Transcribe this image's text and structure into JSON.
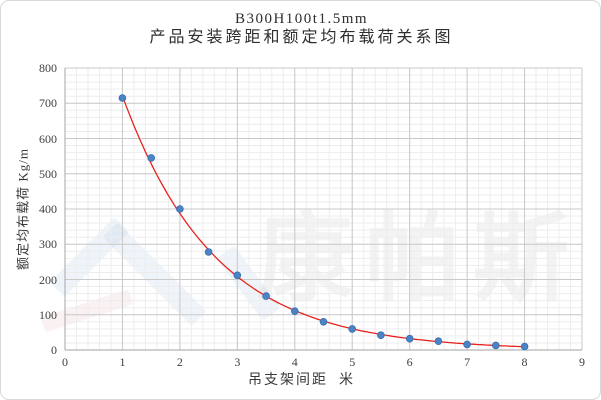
{
  "chart_data": {
    "type": "scatter",
    "title": "B300H100t1.5mm",
    "subtitle": "产品安装跨距和额定均布载荷关系图",
    "xlabel": "吊支架间距  米",
    "ylabel": "额定均布载荷 Kg/m",
    "x": [
      1,
      1.5,
      2,
      2.5,
      3,
      3.5,
      4,
      4.5,
      5,
      5.5,
      6,
      6.5,
      7,
      7.5,
      8
    ],
    "y": [
      715,
      545,
      400,
      278,
      212,
      153,
      110,
      80,
      60,
      42,
      32,
      25,
      16,
      13,
      10
    ],
    "xlim": [
      0,
      9
    ],
    "ylim": [
      0,
      800
    ],
    "x_tick_step": 1,
    "y_tick_step": 100,
    "x_minor_step": 0.2,
    "y_minor_step": 20,
    "grid": "major and minor gridlines on",
    "legend": "none",
    "trendline": "exponential fit through points, x from 1 to 8",
    "colors": {
      "marker": "#4a84c6",
      "marker_edge": "#3a6cab",
      "trendline": "#e8231d",
      "grid_major": "#c9c9c9",
      "grid_minor": "#ededed",
      "axis": "#b3b3b3",
      "tick_text": "#404040",
      "title_text": "#2e2e2e"
    }
  },
  "watermark": {
    "text": "康帕斯"
  }
}
